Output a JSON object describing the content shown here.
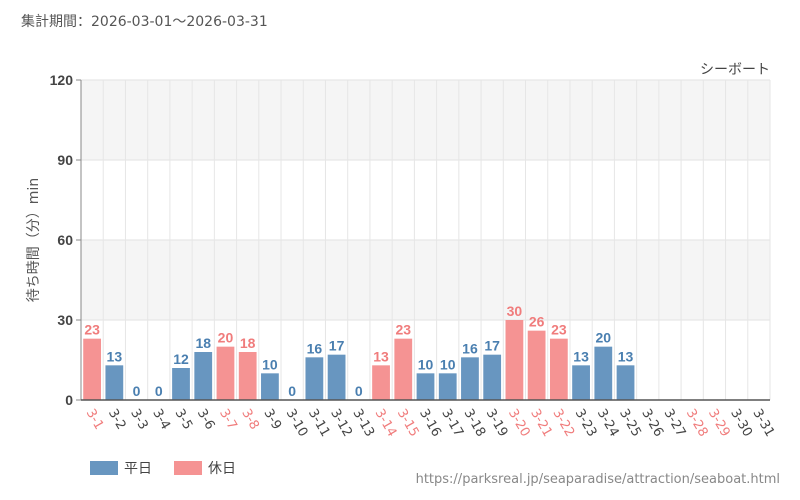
{
  "header": {
    "period_label": "集計期間：2026-03-01～2026-03-31"
  },
  "colors": {
    "weekday": "#6896c0",
    "holiday": "#f59393",
    "weekday_text": "#4a7fb0",
    "holiday_text": "#f07c7c"
  },
  "chart_data": {
    "type": "bar",
    "title": "シーボート",
    "xlabel": "",
    "ylabel": "待ち時間（分）min",
    "ylim": [
      0,
      120
    ],
    "yticks": [
      0,
      30,
      60,
      90,
      120
    ],
    "categories": [
      "3-1",
      "3-2",
      "3-3",
      "3-4",
      "3-5",
      "3-6",
      "3-7",
      "3-8",
      "3-9",
      "3-10",
      "3-11",
      "3-12",
      "3-13",
      "3-14",
      "3-15",
      "3-16",
      "3-17",
      "3-18",
      "3-19",
      "3-20",
      "3-21",
      "3-22",
      "3-23",
      "3-24",
      "3-25",
      "3-26",
      "3-27",
      "3-28",
      "3-29",
      "3-30",
      "3-31"
    ],
    "values": [
      23,
      13,
      0,
      0,
      12,
      18,
      20,
      18,
      10,
      0,
      16,
      17,
      0,
      13,
      23,
      10,
      10,
      16,
      17,
      30,
      26,
      23,
      13,
      20,
      13,
      null,
      null,
      null,
      null,
      null,
      null
    ],
    "day_type": [
      "holiday",
      "weekday",
      "weekday",
      "weekday",
      "weekday",
      "weekday",
      "holiday",
      "holiday",
      "weekday",
      "weekday",
      "weekday",
      "weekday",
      "weekday",
      "holiday",
      "holiday",
      "weekday",
      "weekday",
      "weekday",
      "weekday",
      "holiday",
      "holiday",
      "holiday",
      "weekday",
      "weekday",
      "weekday",
      "weekday",
      "weekday",
      "holiday",
      "holiday",
      "weekday",
      "weekday"
    ],
    "legend": [
      {
        "name": "平日",
        "type": "weekday"
      },
      {
        "name": "休日",
        "type": "holiday"
      }
    ]
  },
  "footer": {
    "source_url": "https://parksreal.jp/seaparadise/attraction/seaboat.html"
  }
}
